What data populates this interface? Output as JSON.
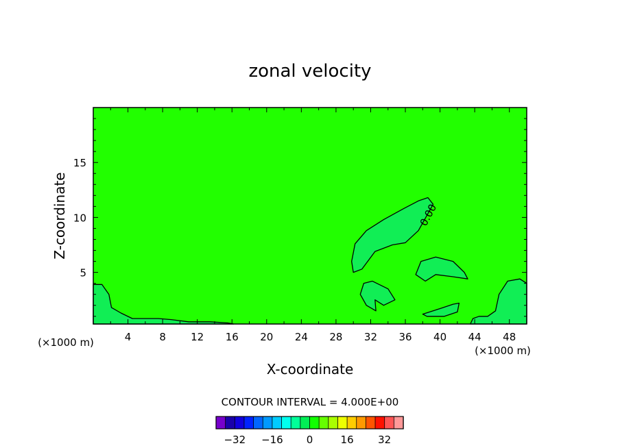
{
  "chart_data": {
    "type": "contour",
    "title": "zonal velocity",
    "xlabel": "X-coordinate",
    "ylabel": "Z-coordinate",
    "x_unit_left": "(×1000 m)",
    "x_unit_right": "(×1000 m)",
    "xlim": [
      0,
      50
    ],
    "ylim": [
      0.3,
      20
    ],
    "x_ticks": [
      4,
      8,
      12,
      16,
      20,
      24,
      28,
      32,
      36,
      40,
      44,
      48
    ],
    "y_ticks": [
      5,
      10,
      15
    ],
    "contour_label": "0.00",
    "contour_interval_label": "CONTOUR INTERVAL = 4.000E+00",
    "background_color": "#22ff00",
    "positive_region_color": "#22ff00",
    "negative_region_color": "#11ee55",
    "negative_regions": [
      {
        "name": "upper-arc",
        "points": [
          [
            29.8,
            6.0
          ],
          [
            30.2,
            7.6
          ],
          [
            31.5,
            8.8
          ],
          [
            33.5,
            9.8
          ],
          [
            35.8,
            10.8
          ],
          [
            37.5,
            11.5
          ],
          [
            38.6,
            11.8
          ],
          [
            39.2,
            11.2
          ],
          [
            38.5,
            10.2
          ],
          [
            37.5,
            8.8
          ],
          [
            36.0,
            7.7
          ],
          [
            34.5,
            7.5
          ],
          [
            32.5,
            6.9
          ],
          [
            31.0,
            5.3
          ],
          [
            30.0,
            5.0
          ]
        ]
      },
      {
        "name": "right-blob",
        "points": [
          [
            37.2,
            4.8
          ],
          [
            37.8,
            6.0
          ],
          [
            39.5,
            6.4
          ],
          [
            41.5,
            6.0
          ],
          [
            42.8,
            5.0
          ],
          [
            43.2,
            4.4
          ],
          [
            41.5,
            4.6
          ],
          [
            39.5,
            4.8
          ],
          [
            38.3,
            4.2
          ]
        ]
      },
      {
        "name": "mid-blob",
        "points": [
          [
            30.8,
            3.0
          ],
          [
            31.2,
            4.0
          ],
          [
            32.2,
            4.2
          ],
          [
            34.0,
            3.5
          ],
          [
            34.8,
            2.5
          ],
          [
            33.5,
            2.0
          ],
          [
            32.5,
            2.5
          ],
          [
            32.6,
            1.5
          ],
          [
            31.5,
            2.0
          ]
        ]
      },
      {
        "name": "lower-right-blob",
        "points": [
          [
            38.0,
            1.2
          ],
          [
            40.0,
            1.7
          ],
          [
            41.5,
            2.1
          ],
          [
            42.2,
            2.2
          ],
          [
            42.0,
            1.4
          ],
          [
            40.5,
            1.0
          ],
          [
            38.5,
            1.0
          ]
        ]
      },
      {
        "name": "right-edge",
        "points": [
          [
            50.0,
            4.0
          ],
          [
            49.2,
            4.4
          ],
          [
            47.8,
            4.2
          ],
          [
            46.8,
            3.0
          ],
          [
            46.4,
            1.5
          ],
          [
            45.5,
            1.0
          ],
          [
            44.5,
            1.0
          ],
          [
            43.8,
            0.8
          ],
          [
            43.5,
            0.3
          ],
          [
            50.0,
            0.3
          ]
        ]
      },
      {
        "name": "left-edge",
        "points": [
          [
            0.0,
            3.9
          ],
          [
            1.0,
            3.9
          ],
          [
            1.8,
            3.0
          ],
          [
            2.1,
            1.8
          ],
          [
            3.2,
            1.3
          ],
          [
            4.5,
            0.8
          ],
          [
            7.5,
            0.8
          ],
          [
            9.0,
            0.7
          ],
          [
            11.0,
            0.5
          ],
          [
            13.5,
            0.5
          ],
          [
            15.5,
            0.4
          ],
          [
            16.2,
            0.3
          ],
          [
            0.0,
            0.3
          ]
        ]
      }
    ],
    "colorbar": {
      "tick_labels": [
        "−32",
        "−16",
        "0",
        "16",
        "32"
      ],
      "colors": [
        "#7700cc",
        "#1a00aa",
        "#1100dd",
        "#0022ff",
        "#0066ff",
        "#0099ff",
        "#00ccff",
        "#00ffee",
        "#00ff99",
        "#00ee55",
        "#11ff00",
        "#66ff00",
        "#aaff00",
        "#eeff00",
        "#ffcc00",
        "#ff9900",
        "#ff5500",
        "#ff1100",
        "#ff5555",
        "#ff9999"
      ]
    }
  }
}
